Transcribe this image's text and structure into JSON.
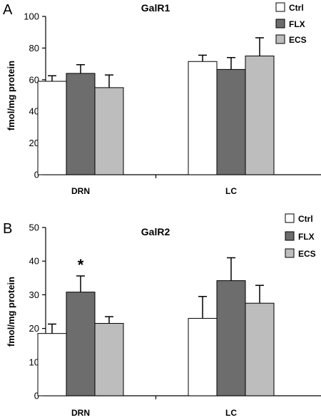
{
  "colors": {
    "Ctrl": "#ffffff",
    "FLX": "#6d6d6d",
    "ECS": "#bdbdbd",
    "stroke": "#000000"
  },
  "chart_data": [
    {
      "panel": "A",
      "type": "bar",
      "title": "GalR1",
      "xlabel": "",
      "ylabel": "fmol/mg protein",
      "ylim": [
        0,
        100
      ],
      "yticks": [
        0,
        20,
        40,
        60,
        80,
        100
      ],
      "categories": [
        "DRN",
        "LC"
      ],
      "series": [
        {
          "name": "Ctrl",
          "values": [
            59,
            71.5
          ],
          "errors": [
            3.5,
            4
          ]
        },
        {
          "name": "FLX",
          "values": [
            64,
            66.5
          ],
          "errors": [
            5.5,
            7.5
          ]
        },
        {
          "name": "ECS",
          "values": [
            55,
            75
          ],
          "errors": [
            8,
            11.5
          ]
        }
      ],
      "annotations": [],
      "legend": "top-right",
      "grid": false
    },
    {
      "panel": "B",
      "type": "bar",
      "title": "GalR2",
      "xlabel": "",
      "ylabel": "fmol/mg protein",
      "ylim": [
        0,
        50
      ],
      "yticks": [
        0,
        10,
        20,
        30,
        40,
        50
      ],
      "categories": [
        "DRN",
        "LC"
      ],
      "series": [
        {
          "name": "Ctrl",
          "values": [
            18.5,
            23
          ],
          "errors": [
            2.8,
            6.5
          ]
        },
        {
          "name": "FLX",
          "values": [
            30.8,
            34.2
          ],
          "errors": [
            4.8,
            6.8
          ]
        },
        {
          "name": "ECS",
          "values": [
            21.5,
            27.5
          ],
          "errors": [
            2,
            5.3
          ]
        }
      ],
      "annotations": [
        {
          "text": "*",
          "category": "DRN",
          "series": "FLX"
        }
      ],
      "legend": "top-right",
      "grid": false
    }
  ]
}
